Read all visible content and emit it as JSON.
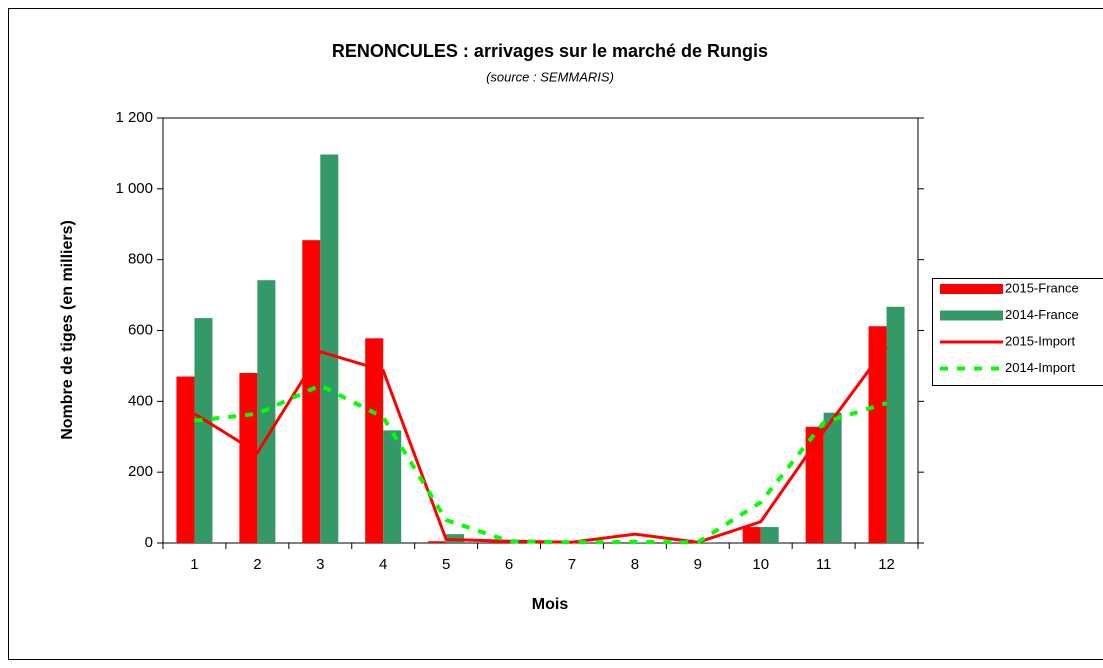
{
  "chart_data": {
    "type": "bar",
    "title": "RENONCULES : arrivages sur le marché de Rungis",
    "subtitle": "(source : SEMMARIS)",
    "x_label": "Mois",
    "y_label": "Nombre de tiges (en milliers)",
    "categories": [
      "1",
      "2",
      "3",
      "4",
      "5",
      "6",
      "7",
      "8",
      "9",
      "10",
      "11",
      "12"
    ],
    "series": [
      {
        "name": "2015-France",
        "type": "bar",
        "color": "#ff0000",
        "values": [
          470,
          480,
          855,
          578,
          5,
          3,
          2,
          0,
          0,
          45,
          328,
          612
        ]
      },
      {
        "name": "2014-France",
        "type": "bar",
        "color": "#339966",
        "values": [
          635,
          742,
          1097,
          318,
          25,
          5,
          2,
          2,
          2,
          45,
          368,
          667
        ]
      },
      {
        "name": "2015-Import",
        "type": "line",
        "line_style": "solid",
        "color": "#ff0000",
        "values": [
          365,
          255,
          540,
          487,
          10,
          5,
          2,
          25,
          2,
          60,
          315,
          555
        ]
      },
      {
        "name": "2014-Import",
        "type": "line",
        "line_style": "dashed",
        "color": "#00ff00",
        "values": [
          345,
          365,
          445,
          355,
          65,
          5,
          2,
          3,
          2,
          115,
          340,
          395
        ]
      }
    ],
    "ylim": [
      0,
      1200
    ],
    "yticks": [
      0,
      200,
      400,
      600,
      800,
      {
        "value": 1000,
        "label": "1 000"
      },
      {
        "value": 1200,
        "label": "1 200"
      }
    ],
    "grid": false,
    "legend": "right"
  }
}
